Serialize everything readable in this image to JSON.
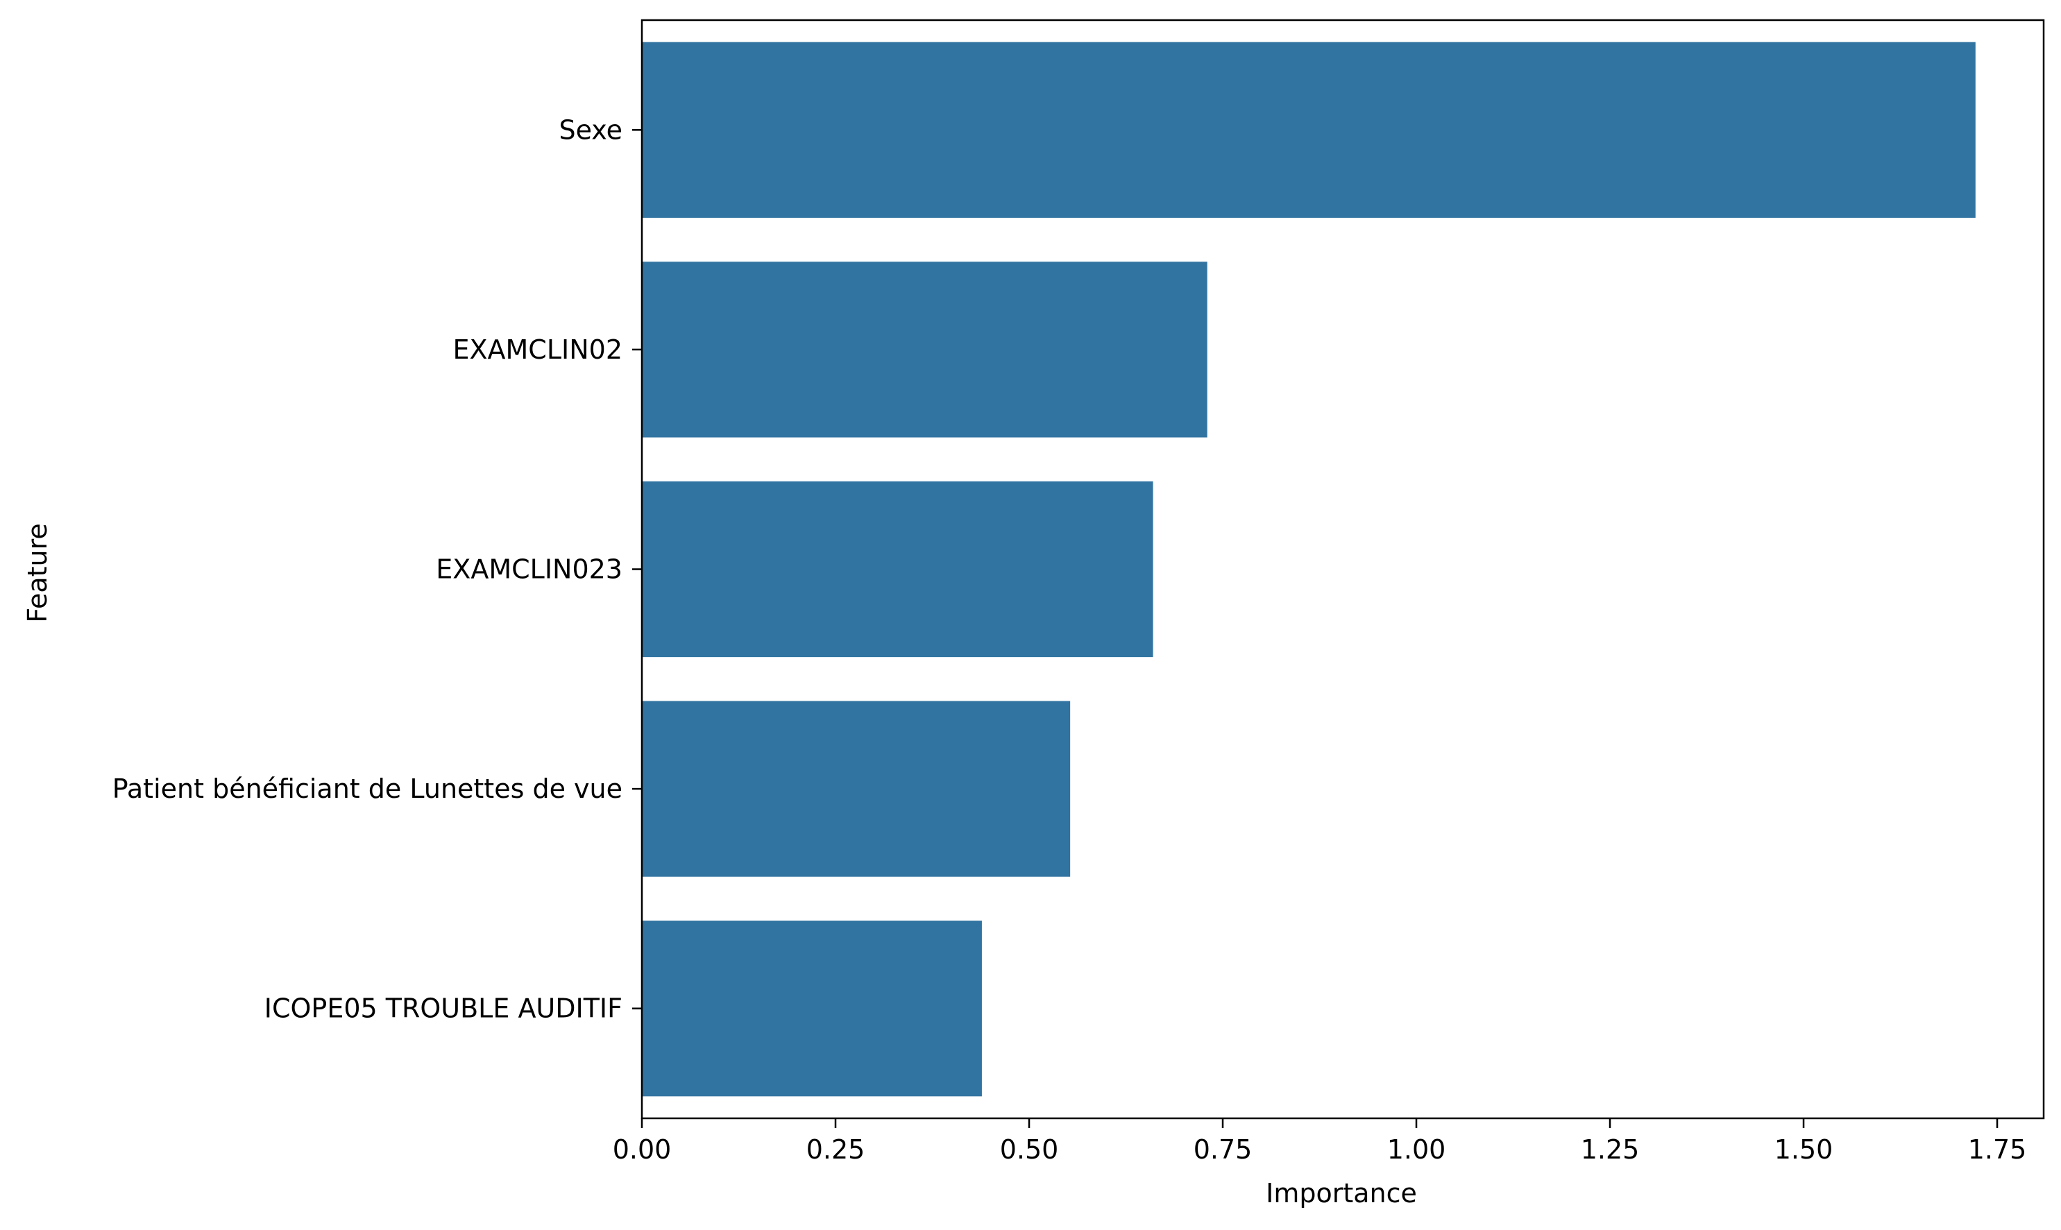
{
  "chart_data": {
    "type": "bar",
    "orientation": "horizontal",
    "title": "",
    "xlabel": "Importance",
    "ylabel": "Feature",
    "categories": [
      "Sexe",
      "EXAMCLIN02",
      "EXAMCLIN023",
      "Patient bénéficiant de Lunettes de vue",
      "ICOPE05 TROUBLE AUDITIF"
    ],
    "values": [
      1.722,
      0.73,
      0.66,
      0.553,
      0.439
    ],
    "xlim": [
      0.0,
      1.81
    ],
    "xticks": [
      0.0,
      0.25,
      0.5,
      0.75,
      1.0,
      1.25,
      1.5,
      1.75
    ],
    "xtick_labels": [
      "0.00",
      "0.25",
      "0.50",
      "0.75",
      "1.00",
      "1.25",
      "1.50",
      "1.75"
    ],
    "grid": false,
    "legend": "none",
    "colors": {
      "bar": "#3274a1",
      "axis": "#000000",
      "background": "#ffffff"
    }
  }
}
